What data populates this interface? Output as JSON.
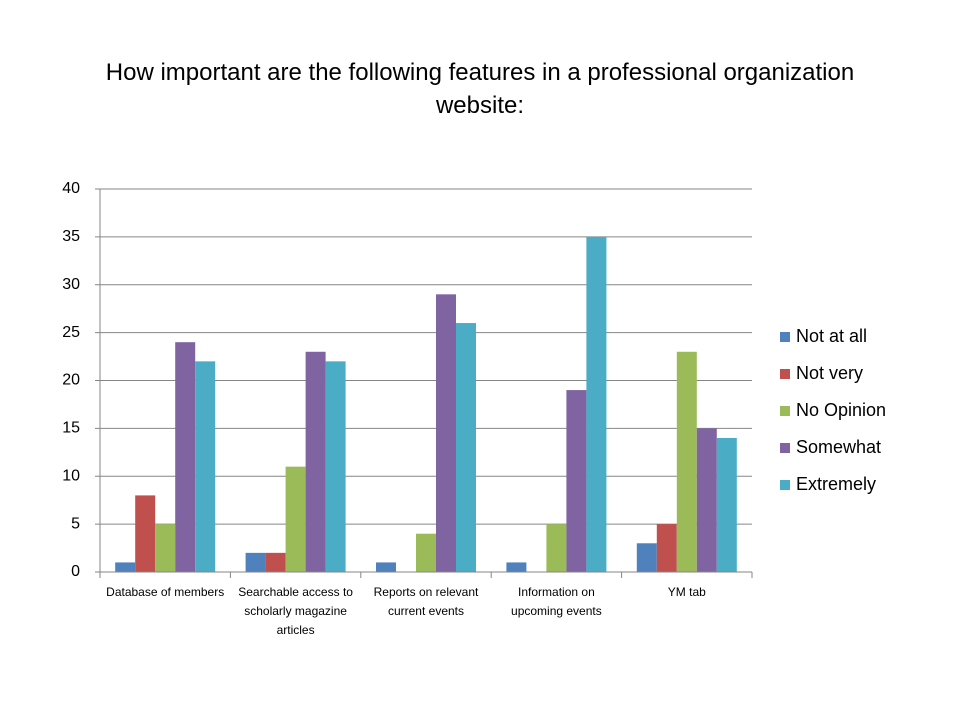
{
  "chart_data": {
    "type": "bar",
    "title": "How important are the following features in a professional organization website:",
    "categories": [
      "Database of members",
      "Searchable access to scholarly magazine articles",
      "Reports on relevant current events",
      "Information on upcoming events",
      "YM tab"
    ],
    "series": [
      {
        "name": "Not at all",
        "color": "#4f81bd",
        "values": [
          1,
          2,
          1,
          1,
          3
        ]
      },
      {
        "name": "Not very",
        "color": "#c0504d",
        "values": [
          8,
          2,
          0,
          0,
          5
        ]
      },
      {
        "name": "No Opinion",
        "color": "#9bbb59",
        "values": [
          5,
          11,
          4,
          5,
          23
        ]
      },
      {
        "name": "Somewhat",
        "color": "#8064a2",
        "values": [
          24,
          23,
          29,
          19,
          15
        ]
      },
      {
        "name": "Extremely",
        "color": "#4bacc6",
        "values": [
          22,
          22,
          26,
          35,
          14
        ]
      }
    ],
    "ylim": [
      0,
      40
    ],
    "yticks": [
      0,
      5,
      10,
      15,
      20,
      25,
      30,
      35,
      40
    ],
    "grid": true,
    "legend": "right"
  }
}
